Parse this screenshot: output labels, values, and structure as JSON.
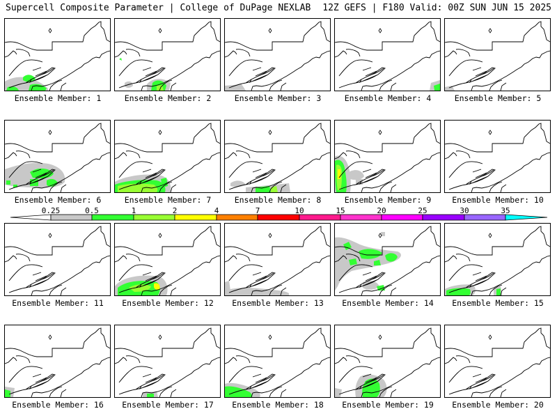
{
  "header": {
    "left": "Supercell Composite Parameter | College of DuPage NEXLAB",
    "right": "12Z GEFS | F180 Valid: 00Z SUN JUN 15 2025"
  },
  "colors": {
    "0.25": "#c8c8c8",
    "0.5": "#33ff33",
    "1": "#99ff33",
    "2": "#ffff00",
    "4": "#ff8000",
    "7": "#ff0000",
    "10": "#ff1a8c",
    "15": "#ff33cc",
    "20": "#ff00ff",
    "25": "#9900ff",
    "30": "#9966ff",
    "35": "#00ffff"
  },
  "colorbar": {
    "ticks": [
      "0.25",
      "0.5",
      "1",
      "2",
      "4",
      "7",
      "10",
      "15",
      "20",
      "25",
      "30",
      "35"
    ]
  },
  "members": [
    {
      "label": "Ensemble Member: 1"
    },
    {
      "label": "Ensemble Member: 2"
    },
    {
      "label": "Ensemble Member: 3"
    },
    {
      "label": "Ensemble Member: 4"
    },
    {
      "label": "Ensemble Member: 5"
    },
    {
      "label": "Ensemble Member: 6"
    },
    {
      "label": "Ensemble Member: 7"
    },
    {
      "label": "Ensemble Member: 8"
    },
    {
      "label": "Ensemble Member: 9"
    },
    {
      "label": "Ensemble Member: 10"
    },
    {
      "label": "Ensemble Member: 11"
    },
    {
      "label": "Ensemble Member: 12"
    },
    {
      "label": "Ensemble Member: 13"
    },
    {
      "label": "Ensemble Member: 14"
    },
    {
      "label": "Ensemble Member: 15"
    },
    {
      "label": "Ensemble Member: 16"
    },
    {
      "label": "Ensemble Member: 17"
    },
    {
      "label": "Ensemble Member: 18"
    },
    {
      "label": "Ensemble Member: 19"
    },
    {
      "label": "Ensemble Member: 20"
    }
  ]
}
